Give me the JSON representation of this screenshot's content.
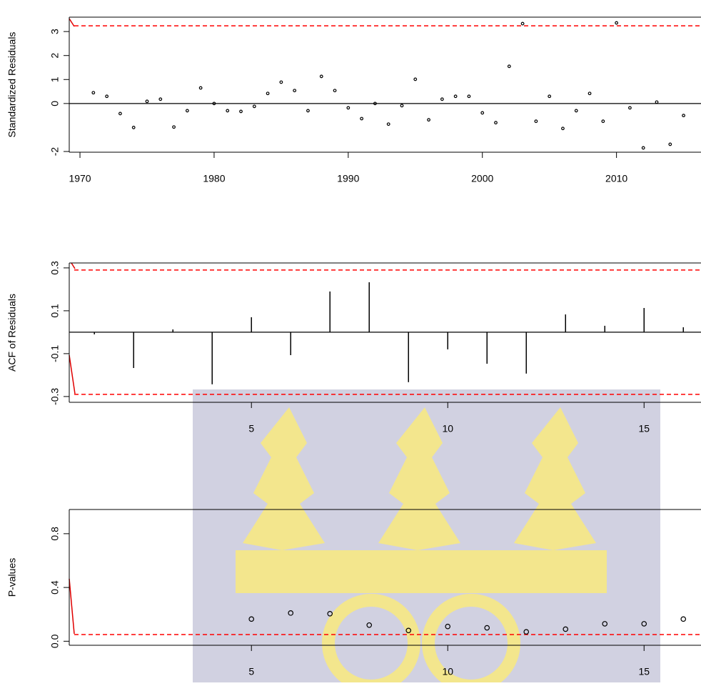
{
  "chart_data": [
    {
      "type": "scatter",
      "ylabel": "Standardized Residuals",
      "x": [
        1971,
        1972,
        1973,
        1974,
        1975,
        1976,
        1977,
        1978,
        1979,
        1980,
        1981,
        1982,
        1983,
        1984,
        1985,
        1986,
        1987,
        1988,
        1989,
        1990,
        1991,
        1992,
        1993,
        1994,
        1995,
        1996,
        1997,
        1998,
        1999,
        2000,
        2001,
        2002,
        2003,
        2004,
        2005,
        2006,
        2007,
        2008,
        2009,
        2010,
        2011,
        2012,
        2013,
        2014,
        2015
      ],
      "values": [
        0.45,
        0.3,
        -0.42,
        -1.0,
        0.09,
        0.18,
        -0.98,
        -0.3,
        0.65,
        0.0,
        -0.3,
        -0.33,
        -0.12,
        0.42,
        0.89,
        0.54,
        -0.3,
        1.13,
        0.54,
        -0.18,
        -0.63,
        0.0,
        -0.86,
        -0.09,
        1.01,
        -0.68,
        0.18,
        0.3,
        0.3,
        -0.39,
        -0.8,
        1.55,
        3.33,
        -0.74,
        0.3,
        -1.04,
        -0.3,
        0.42,
        -0.74,
        3.36,
        -0.18,
        -1.85,
        0.06,
        -1.7,
        -0.5
      ],
      "color": "#000000",
      "xlim": [
        1969.2,
        2016.3
      ],
      "ylim": [
        -2.03,
        3.6
      ],
      "xticks": [
        1970,
        1980,
        1990,
        2000,
        2010
      ],
      "yticks": [
        -2,
        0,
        1,
        2,
        3
      ],
      "hlines": [
        3.24
      ],
      "hline_color": "#ff0000",
      "zero_line": true
    },
    {
      "type": "bar",
      "ylabel": "ACF of Residuals",
      "x": [
        1,
        2,
        3,
        4,
        5,
        6,
        7,
        8,
        9,
        10,
        11,
        12,
        13,
        14,
        15,
        16
      ],
      "values": [
        -0.01,
        -0.167,
        0.013,
        -0.243,
        0.07,
        -0.107,
        0.19,
        0.233,
        -0.233,
        -0.08,
        -0.147,
        -0.193,
        0.083,
        0.03,
        0.113,
        0.023
      ],
      "color": "#000000",
      "xlim": [
        0.36,
        16.45
      ],
      "ylim": [
        -0.327,
        0.323
      ],
      "xticks": [
        5,
        10,
        15
      ],
      "yticks": [
        -0.3,
        -0.1,
        0.1,
        0.3
      ],
      "hlines": [
        0.29,
        -0.29
      ],
      "hline_color": "#ff0000",
      "zero_line": true
    },
    {
      "type": "scatter",
      "ylabel": "P-values",
      "x": [
        5,
        6,
        7,
        8,
        9,
        10,
        11,
        12,
        13,
        14,
        15,
        16
      ],
      "values": [
        0.165,
        0.21,
        0.205,
        0.12,
        0.08,
        0.11,
        0.1,
        0.07,
        0.09,
        0.13,
        0.13,
        0.165
      ],
      "color": "#000000",
      "xlim": [
        0.36,
        16.45
      ],
      "ylim": [
        -0.03,
        0.98
      ],
      "xticks": [
        5,
        10,
        15
      ],
      "yticks": [
        {
          "value": 0,
          "label": "0.0"
        },
        0.4,
        0.8
      ],
      "hlines": [
        0.05
      ],
      "hline_color": "#ff0000",
      "zero_line": false
    }
  ]
}
